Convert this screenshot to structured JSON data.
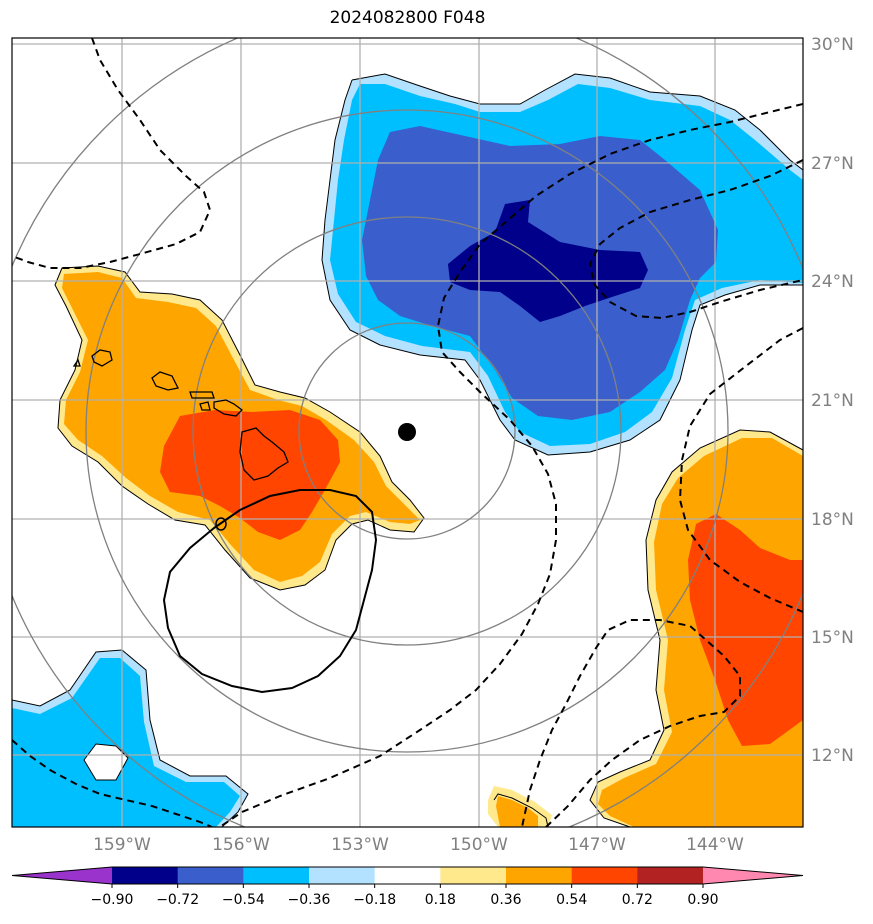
{
  "title": "2024082800 F048",
  "lat_labels": [
    "30°N",
    "27°N",
    "24°N",
    "21°N",
    "18°N",
    "15°N",
    "12°N"
  ],
  "lon_labels": [
    "159°W",
    "156°W",
    "153°W",
    "150°W",
    "147°W",
    "144°W"
  ],
  "colorbar": {
    "labels": [
      "−0.90",
      "−0.72",
      "−0.54",
      "−0.36",
      "−0.18",
      "0.18",
      "0.36",
      "0.54",
      "0.72",
      "0.90"
    ],
    "colors": [
      "#9933cc",
      "#00008b",
      "#3a5fcd",
      "#00bfff",
      "#b2e2ff",
      "#ffffff",
      "#ffe98c",
      "#ffa500",
      "#ff4500",
      "#b22222",
      "#ff88b0"
    ]
  },
  "fill_colors": {
    "light_blue": "#b2e2ff",
    "blue": "#00bfff",
    "medium_blue": "#3a5fcd",
    "dark_blue": "#00008b",
    "light_yellow": "#ffe98c",
    "orange": "#ffa500",
    "red_orange": "#ff4500"
  },
  "storm_center_marker": "black-dot",
  "range_rings": 4
}
